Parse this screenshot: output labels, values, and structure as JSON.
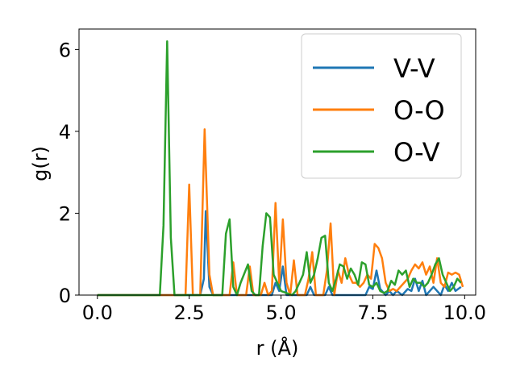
{
  "chart_data": {
    "type": "line",
    "xlabel": "r (Å)",
    "ylabel": "g(r)",
    "xlim": [
      -0.5,
      10.3
    ],
    "ylim": [
      0,
      6.5
    ],
    "xticks": [
      0.0,
      2.5,
      5.0,
      7.5,
      10.0
    ],
    "xtick_labels": [
      "0.0",
      "2.5",
      "5.0",
      "7.5",
      "10.0"
    ],
    "yticks": [
      0,
      2,
      4,
      6
    ],
    "ytick_labels": [
      "0",
      "2",
      "4",
      "6"
    ],
    "grid": false,
    "legend": "top-right",
    "series": [
      {
        "name": "V-V",
        "color": "#1f77b4",
        "x": [
          0,
          2.8,
          2.9,
          2.95,
          3.05,
          3.15,
          4.75,
          4.85,
          4.95,
          5.05,
          5.15,
          5.7,
          5.8,
          5.9,
          6.2,
          6.3,
          6.4,
          7.3,
          7.4,
          7.5,
          7.6,
          7.7,
          7.85,
          7.95,
          8.05,
          8.15,
          8.3,
          8.45,
          8.55,
          8.65,
          8.75,
          8.85,
          8.95,
          9.05,
          9.15,
          9.25,
          9.35,
          9.45,
          9.55,
          9.65,
          9.75,
          9.9
        ],
        "values": [
          0,
          0,
          0.4,
          2.05,
          0.2,
          0,
          0,
          0.3,
          0.1,
          0.7,
          0,
          0,
          0.2,
          0,
          0,
          0.2,
          0,
          0,
          0.2,
          0.15,
          0.6,
          0.15,
          0,
          0.1,
          0,
          0.1,
          0,
          0.15,
          0.1,
          0.4,
          0.1,
          0.35,
          0,
          0.1,
          0.2,
          0.1,
          0,
          0.25,
          0.1,
          0.3,
          0.1,
          0.2
        ]
      },
      {
        "name": "O-O",
        "color": "#ff7f0e",
        "x": [
          0,
          2.4,
          2.5,
          2.6,
          2.8,
          2.92,
          3.05,
          3.15,
          3.6,
          3.7,
          3.8,
          4.05,
          4.15,
          4.25,
          4.45,
          4.55,
          4.65,
          4.75,
          4.85,
          4.95,
          5.05,
          5.15,
          5.25,
          5.35,
          5.45,
          5.65,
          5.75,
          5.85,
          5.95,
          6.15,
          6.25,
          6.35,
          6.45,
          6.55,
          6.65,
          6.75,
          6.85,
          6.95,
          7.05,
          7.15,
          7.25,
          7.35,
          7.45,
          7.55,
          7.65,
          7.75,
          7.85,
          7.95,
          8.05,
          8.15,
          8.25,
          8.35,
          8.45,
          8.55,
          8.65,
          8.75,
          8.85,
          8.95,
          9.05,
          9.15,
          9.25,
          9.35,
          9.45,
          9.55,
          9.65,
          9.75,
          9.85,
          9.95
        ],
        "values": [
          0,
          0,
          2.7,
          0,
          0,
          4.05,
          0.5,
          0,
          0,
          0.8,
          0,
          0,
          0.7,
          0,
          0,
          0.3,
          0,
          0.1,
          2.25,
          0.3,
          1.85,
          0.3,
          0,
          0.85,
          0,
          0,
          0.4,
          1.05,
          0,
          0,
          0.6,
          1.75,
          0,
          0.6,
          0.3,
          0.9,
          0.5,
          0.3,
          0.3,
          0.2,
          0.3,
          0.5,
          0.4,
          1.25,
          1.15,
          0.9,
          0.3,
          0.1,
          0.15,
          0.1,
          0.2,
          0.3,
          0.4,
          0.6,
          0.75,
          0.65,
          0.8,
          0.5,
          0.7,
          0.3,
          0.9,
          0.3,
          0.2,
          0.55,
          0.5,
          0.55,
          0.5,
          0.2
        ]
      },
      {
        "name": "O-V",
        "color": "#2ca02c",
        "x": [
          0,
          1.7,
          1.8,
          1.9,
          2.0,
          2.1,
          3.4,
          3.5,
          3.6,
          3.7,
          3.8,
          3.9,
          4.1,
          4.2,
          4.3,
          4.4,
          4.5,
          4.6,
          4.7,
          4.8,
          4.9,
          5.0,
          5.3,
          5.4,
          5.5,
          5.6,
          5.7,
          5.8,
          5.9,
          6.0,
          6.1,
          6.2,
          6.3,
          6.4,
          6.5,
          6.6,
          6.7,
          6.8,
          6.9,
          7.0,
          7.1,
          7.2,
          7.3,
          7.4,
          7.5,
          7.6,
          7.7,
          7.8,
          7.9,
          8.0,
          8.1,
          8.2,
          8.3,
          8.4,
          8.5,
          8.6,
          8.7,
          8.8,
          8.9,
          9.0,
          9.1,
          9.2,
          9.3,
          9.4,
          9.5,
          9.6,
          9.7,
          9.8,
          9.9
        ],
        "values": [
          0,
          0,
          1.7,
          6.2,
          1.4,
          0,
          0,
          1.5,
          1.85,
          0.2,
          0,
          0.3,
          0.75,
          0.1,
          0,
          0,
          1.2,
          2.0,
          1.9,
          0.5,
          0.3,
          0.1,
          0,
          0.1,
          0.3,
          0.5,
          1.05,
          0.3,
          0.5,
          0.9,
          1.4,
          1.45,
          0.3,
          0.1,
          0.4,
          0.75,
          0.7,
          0.4,
          0.65,
          0.5,
          0.25,
          0.8,
          0.75,
          0.25,
          0.2,
          0.3,
          0.1,
          0.05,
          0.1,
          0.35,
          0.25,
          0.6,
          0.5,
          0.6,
          0.2,
          0.4,
          0.3,
          0.3,
          0.2,
          0.3,
          0.5,
          0.75,
          0.9,
          0.5,
          0.3,
          0.1,
          0.2,
          0.4,
          0.3
        ]
      }
    ]
  }
}
